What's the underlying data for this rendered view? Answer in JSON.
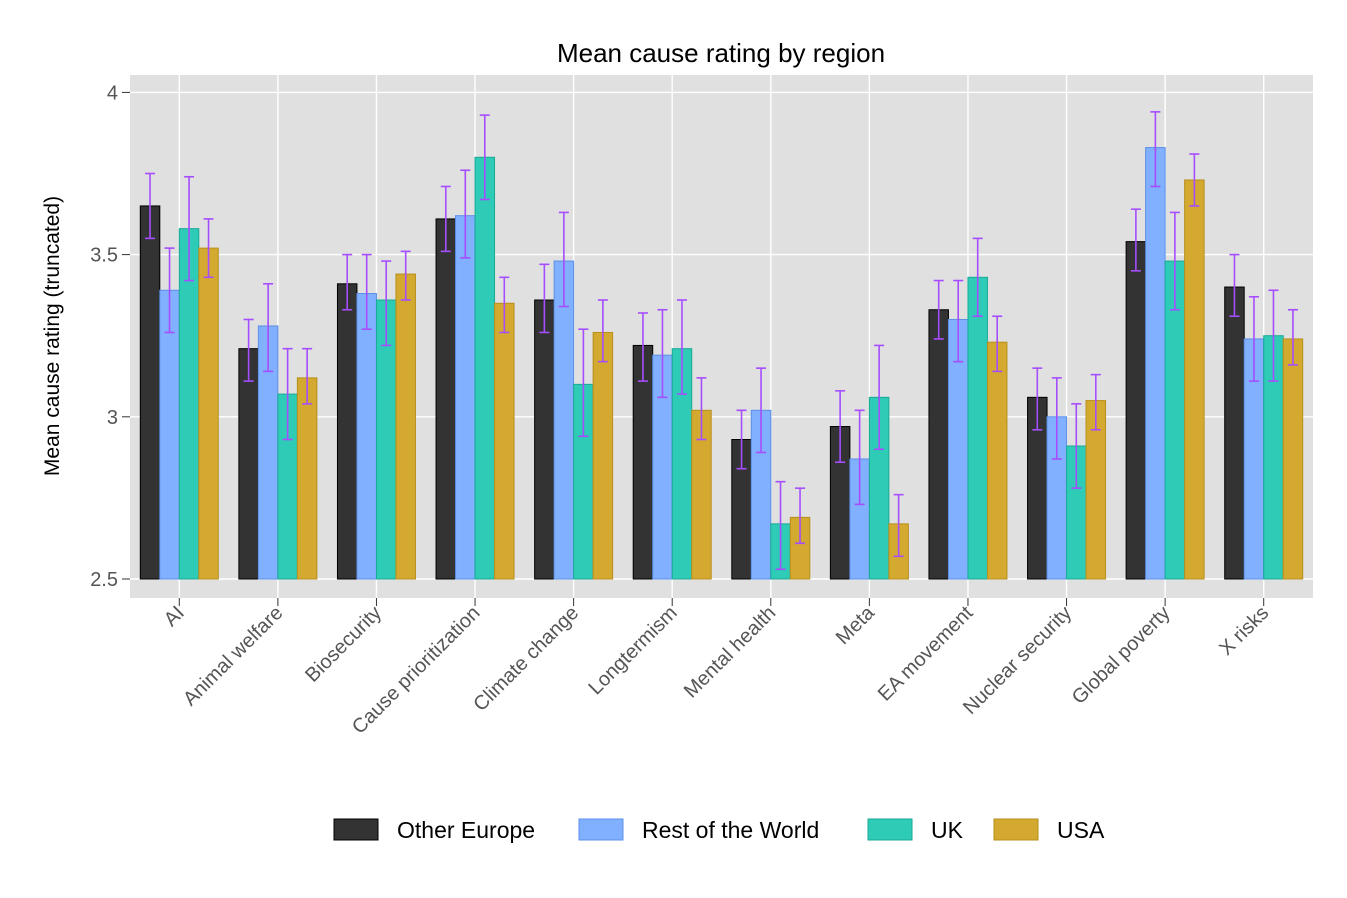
{
  "chart_data": {
    "type": "bar",
    "title": "Mean cause rating by region",
    "xlabel": "",
    "ylabel": "Mean cause rating (truncated)",
    "ylim": [
      2.5,
      4.05
    ],
    "yticks": [
      "2.5",
      "3",
      "3.5",
      "4"
    ],
    "ytick_values": [
      2.5,
      3,
      3.5,
      4
    ],
    "grid": true,
    "legend_position": "bottom",
    "error_bar_color": "#a64dff",
    "panel_background": "#e0e0e0",
    "categories": [
      "AI",
      "Animal welfare",
      "Biosecurity",
      "Cause prioritization",
      "Climate change",
      "Longtermism",
      "Mental health",
      "Meta",
      "EA movement",
      "Nuclear security",
      "Global poverty",
      "X risks"
    ],
    "series": [
      {
        "name": "Other Europe",
        "color": "#333333",
        "stroke": "#000000",
        "values": [
          3.65,
          3.21,
          3.41,
          3.61,
          3.36,
          3.22,
          2.93,
          2.97,
          3.33,
          3.06,
          3.54,
          3.4
        ],
        "err_low": [
          3.55,
          3.11,
          3.33,
          3.51,
          3.26,
          3.11,
          2.84,
          2.86,
          3.24,
          2.96,
          3.45,
          3.31
        ],
        "err_high": [
          3.75,
          3.3,
          3.5,
          3.71,
          3.47,
          3.32,
          3.02,
          3.08,
          3.42,
          3.15,
          3.64,
          3.5
        ]
      },
      {
        "name": "Rest of the World",
        "color": "#80b0ff",
        "stroke": "#5d8fe8",
        "values": [
          3.39,
          3.28,
          3.38,
          3.62,
          3.48,
          3.19,
          3.02,
          2.87,
          3.3,
          3.0,
          3.83,
          3.24
        ],
        "err_low": [
          3.26,
          3.14,
          3.27,
          3.49,
          3.34,
          3.06,
          2.89,
          2.73,
          3.17,
          2.87,
          3.71,
          3.11
        ],
        "err_high": [
          3.52,
          3.41,
          3.5,
          3.76,
          3.63,
          3.33,
          3.15,
          3.02,
          3.42,
          3.12,
          3.94,
          3.37
        ]
      },
      {
        "name": "UK",
        "color": "#2ecbb6",
        "stroke": "#1aa996",
        "values": [
          3.58,
          3.07,
          3.36,
          3.8,
          3.1,
          3.21,
          2.67,
          3.06,
          3.43,
          2.91,
          3.48,
          3.25
        ],
        "err_low": [
          3.42,
          2.93,
          3.22,
          3.67,
          2.94,
          3.07,
          2.53,
          2.9,
          3.31,
          2.78,
          3.33,
          3.11
        ],
        "err_high": [
          3.74,
          3.21,
          3.48,
          3.93,
          3.27,
          3.36,
          2.8,
          3.22,
          3.55,
          3.04,
          3.63,
          3.39
        ]
      },
      {
        "name": "USA",
        "color": "#d4a930",
        "stroke": "#b88f1c",
        "values": [
          3.52,
          3.12,
          3.44,
          3.35,
          3.26,
          3.02,
          2.69,
          2.67,
          3.23,
          3.05,
          3.73,
          3.24
        ],
        "err_low": [
          3.43,
          3.04,
          3.36,
          3.26,
          3.17,
          2.93,
          2.61,
          2.57,
          3.14,
          2.96,
          3.65,
          3.16
        ],
        "err_high": [
          3.61,
          3.21,
          3.51,
          3.43,
          3.36,
          3.12,
          2.78,
          2.76,
          3.31,
          3.13,
          3.81,
          3.33
        ]
      }
    ]
  }
}
